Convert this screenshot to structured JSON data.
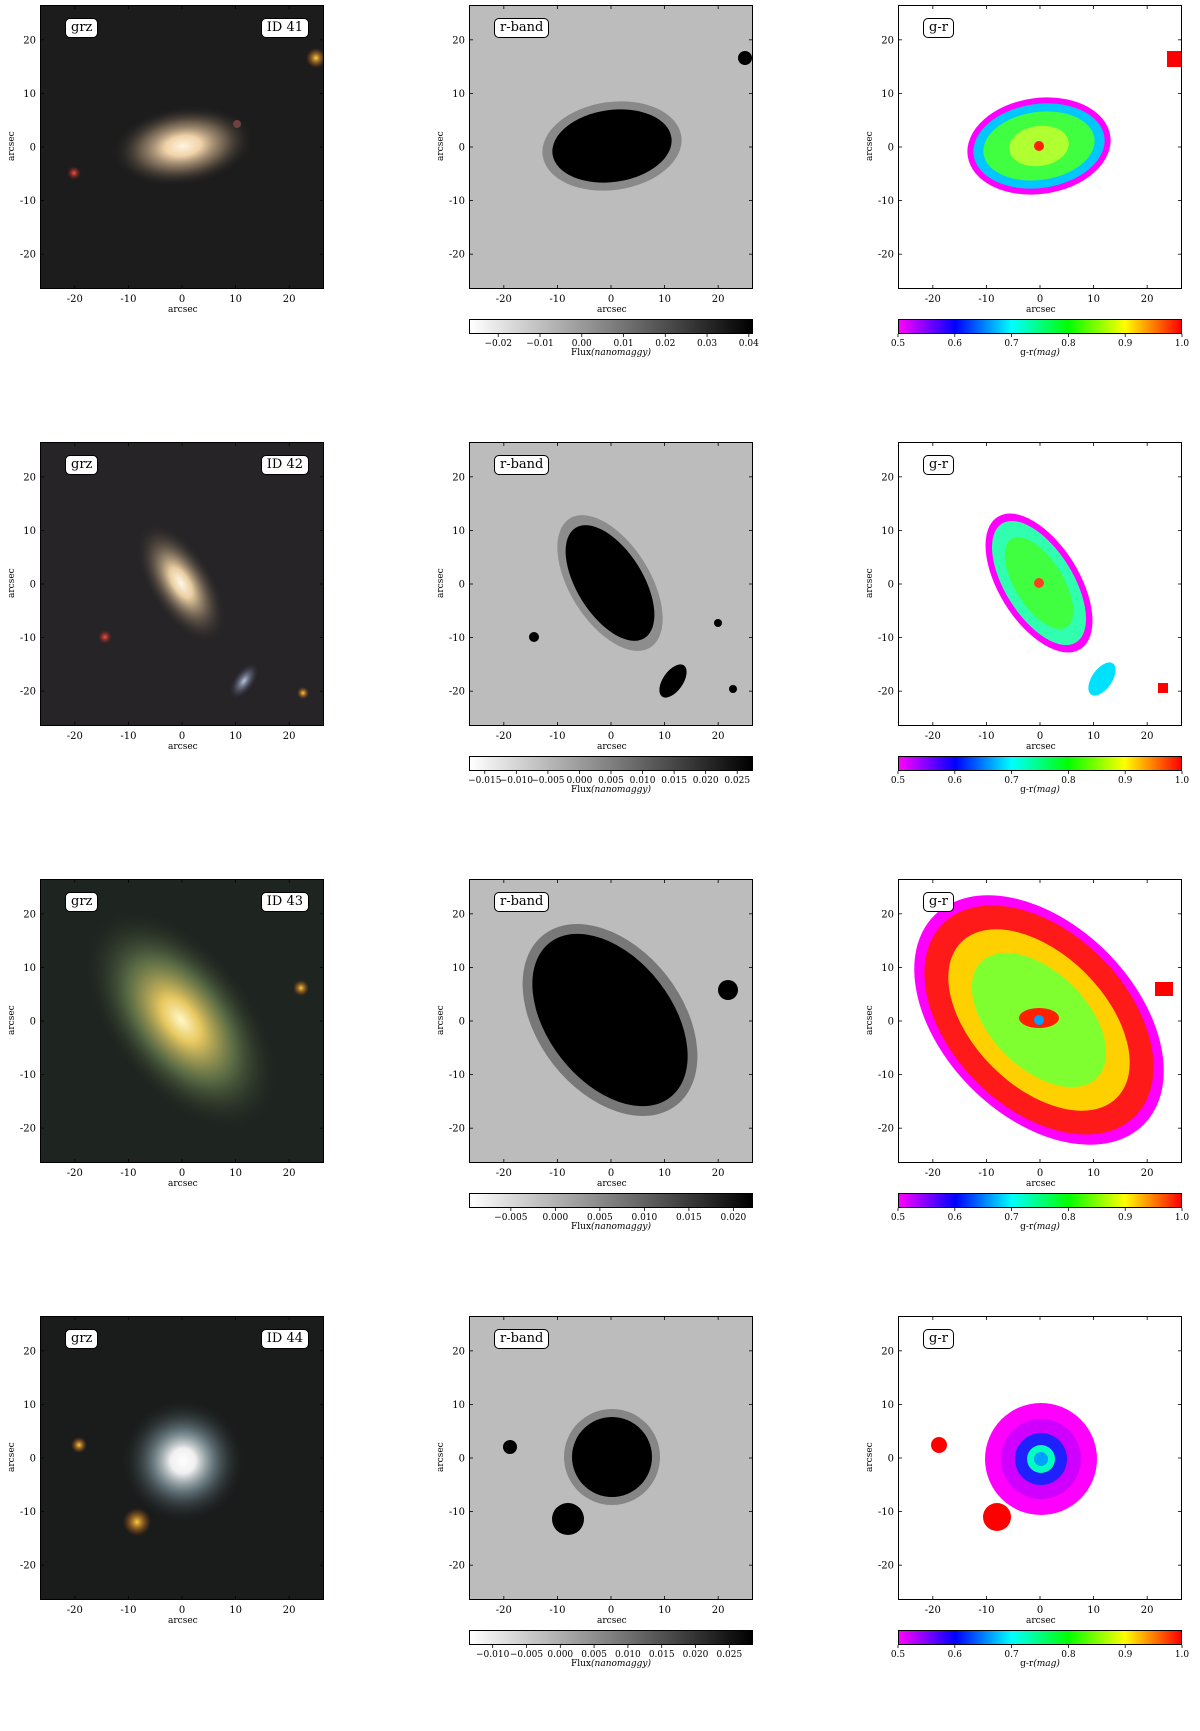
{
  "axis": {
    "x_label": "arcsec",
    "y_label": "arcsec",
    "ticks": [
      "-20",
      "-10",
      "0",
      "10",
      "20"
    ],
    "range": [
      -26.5,
      26.5
    ]
  },
  "labels": {
    "rgb": "grz",
    "rband": "r-band",
    "color": "g-r"
  },
  "colorbar_titles": {
    "flux": "Flux",
    "flux_unit": "(nanomaggy)",
    "gr": "g-r",
    "gr_unit": "(mag)"
  },
  "gr_colorbar_ticks": [
    "0.5",
    "0.6",
    "0.7",
    "0.8",
    "0.9",
    "1.0"
  ],
  "gr_colormap": [
    "#ff00ff",
    "#0000ff",
    "#00ffff",
    "#00ff00",
    "#ffff00",
    "#ff0000"
  ],
  "rows": [
    {
      "id": "ID 41",
      "flux_ticks": [
        "−0.02",
        "−0.01",
        "0.00",
        "0.01",
        "0.02",
        "0.03",
        "0.04"
      ],
      "flux_range": [
        -0.027,
        0.041
      ],
      "flux_values": [
        -0.02,
        -0.01,
        0.0,
        0.01,
        0.02,
        0.03,
        0.04
      ]
    },
    {
      "id": "ID 42",
      "flux_ticks": [
        "−0.015",
        "−0.010",
        "−0.005",
        "0.000",
        "0.005",
        "0.010",
        "0.015",
        "0.020",
        "0.025"
      ],
      "flux_range": [
        -0.0175,
        0.0275
      ],
      "flux_values": [
        -0.015,
        -0.01,
        -0.005,
        0.0,
        0.005,
        0.01,
        0.015,
        0.02,
        0.025
      ]
    },
    {
      "id": "ID 43",
      "flux_ticks": [
        "−0.005",
        "0.000",
        "0.005",
        "0.010",
        "0.015",
        "0.020"
      ],
      "flux_range": [
        -0.0097,
        0.0222
      ],
      "flux_values": [
        -0.005,
        0.0,
        0.005,
        0.01,
        0.015,
        0.02
      ]
    },
    {
      "id": "ID 44",
      "flux_ticks": [
        "−0.010",
        "−0.005",
        "0.000",
        "0.005",
        "0.010",
        "0.015",
        "0.020",
        "0.025"
      ],
      "flux_range": [
        -0.0135,
        0.0285
      ],
      "flux_values": [
        -0.01,
        -0.005,
        0.0,
        0.005,
        0.01,
        0.015,
        0.02,
        0.025
      ]
    }
  ]
}
